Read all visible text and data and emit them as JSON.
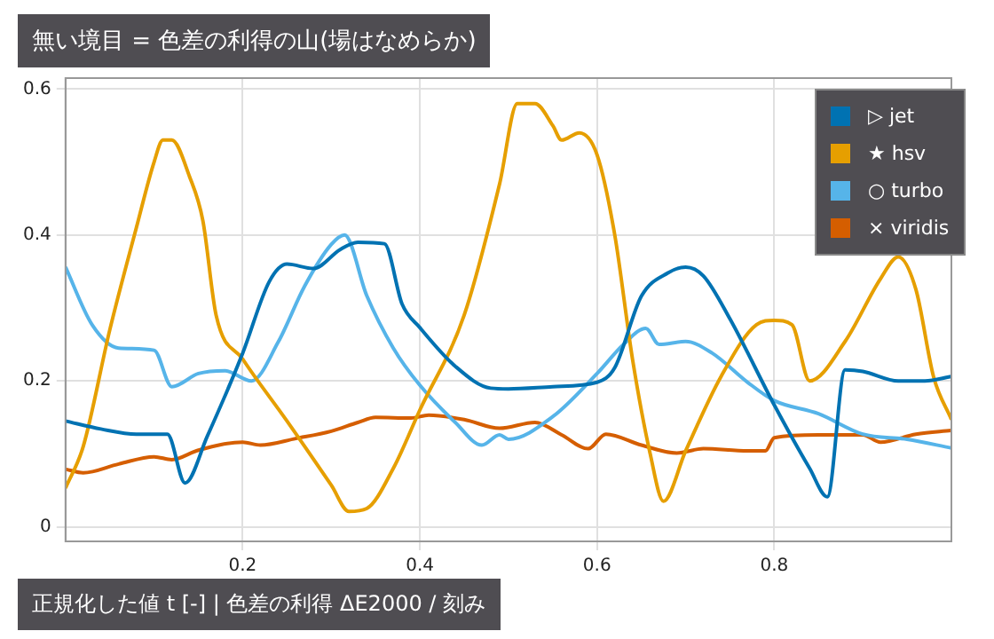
{
  "chart_data": {
    "type": "line",
    "title": "無い境目 = 色差の利得の山(場はなめらか)",
    "xlabel": "正規化した値 t [-]   |   色差の利得 ΔE2000 / 刻み",
    "xlim": [
      0,
      1
    ],
    "xticks": [
      0.2,
      0.4,
      0.6,
      0.8
    ],
    "ylim": [
      -0.02,
      0.615
    ],
    "yticks": [
      0,
      0.2,
      0.4,
      0.6
    ],
    "grid": true,
    "legend": "top right",
    "marker": "none",
    "line_style": "solid",
    "series": [
      {
        "name": "▷ jet",
        "color": "#0072b2",
        "x": [
          0,
          0.04,
          0.08,
          0.115,
          0.135,
          0.16,
          0.2,
          0.23,
          0.25,
          0.28,
          0.31,
          0.33,
          0.36,
          0.38,
          0.4,
          0.44,
          0.48,
          0.5,
          0.55,
          0.6,
          0.62,
          0.65,
          0.68,
          0.7,
          0.72,
          0.75,
          0.8,
          0.84,
          0.86,
          0.88,
          0.9,
          0.94,
          0.97,
          1.0
        ],
        "values": [
          0.145,
          0.134,
          0.127,
          0.127,
          0.06,
          0.124,
          0.238,
          0.336,
          0.36,
          0.354,
          0.38,
          0.39,
          0.388,
          0.305,
          0.273,
          0.22,
          0.19,
          0.189,
          0.192,
          0.198,
          0.218,
          0.316,
          0.348,
          0.356,
          0.344,
          0.285,
          0.167,
          0.08,
          0.041,
          0.215,
          0.213,
          0.2,
          0.2,
          0.206
        ]
      },
      {
        "name": "★ hsv",
        "color": "#e69f00",
        "x": [
          0,
          0.02,
          0.05,
          0.08,
          0.1,
          0.11,
          0.12,
          0.14,
          0.155,
          0.17,
          0.2,
          0.25,
          0.3,
          0.32,
          0.34,
          0.37,
          0.4,
          0.45,
          0.49,
          0.51,
          0.53,
          0.55,
          0.56,
          0.58,
          0.6,
          0.62,
          0.64,
          0.66,
          0.675,
          0.7,
          0.74,
          0.78,
          0.8,
          0.82,
          0.84,
          0.88,
          0.92,
          0.94,
          0.96,
          0.98,
          1.0
        ],
        "values": [
          0.053,
          0.11,
          0.27,
          0.41,
          0.5,
          0.53,
          0.53,
          0.48,
          0.42,
          0.29,
          0.23,
          0.145,
          0.057,
          0.021,
          0.025,
          0.08,
          0.16,
          0.29,
          0.47,
          0.58,
          0.58,
          0.55,
          0.53,
          0.54,
          0.51,
          0.4,
          0.23,
          0.1,
          0.035,
          0.104,
          0.206,
          0.277,
          0.283,
          0.277,
          0.2,
          0.254,
          0.34,
          0.37,
          0.325,
          0.205,
          0.147
        ]
      },
      {
        "name": "○ turbo",
        "color": "#56b4e9",
        "x": [
          0,
          0.03,
          0.06,
          0.1,
          0.12,
          0.15,
          0.18,
          0.21,
          0.24,
          0.27,
          0.3,
          0.315,
          0.34,
          0.37,
          0.4,
          0.44,
          0.47,
          0.49,
          0.5,
          0.55,
          0.6,
          0.63,
          0.655,
          0.67,
          0.7,
          0.73,
          0.77,
          0.8,
          0.85,
          0.9,
          0.95,
          1.0
        ],
        "values": [
          0.356,
          0.277,
          0.245,
          0.242,
          0.192,
          0.21,
          0.214,
          0.2,
          0.253,
          0.33,
          0.387,
          0.4,
          0.317,
          0.245,
          0.194,
          0.143,
          0.112,
          0.126,
          0.12,
          0.151,
          0.21,
          0.25,
          0.272,
          0.25,
          0.254,
          0.238,
          0.198,
          0.173,
          0.155,
          0.127,
          0.12,
          0.108
        ]
      },
      {
        "name": "× viridis",
        "color": "#d55e00",
        "x": [
          0,
          0.02,
          0.06,
          0.1,
          0.12,
          0.15,
          0.2,
          0.22,
          0.26,
          0.3,
          0.33,
          0.35,
          0.39,
          0.41,
          0.45,
          0.49,
          0.53,
          0.56,
          0.59,
          0.61,
          0.65,
          0.69,
          0.72,
          0.77,
          0.79,
          0.8,
          0.85,
          0.9,
          0.92,
          0.96,
          1.0
        ],
        "values": [
          0.079,
          0.074,
          0.086,
          0.096,
          0.092,
          0.105,
          0.116,
          0.112,
          0.121,
          0.131,
          0.143,
          0.15,
          0.149,
          0.153,
          0.147,
          0.135,
          0.143,
          0.126,
          0.107,
          0.127,
          0.112,
          0.101,
          0.107,
          0.104,
          0.104,
          0.122,
          0.126,
          0.126,
          0.116,
          0.127,
          0.132
        ]
      }
    ]
  }
}
